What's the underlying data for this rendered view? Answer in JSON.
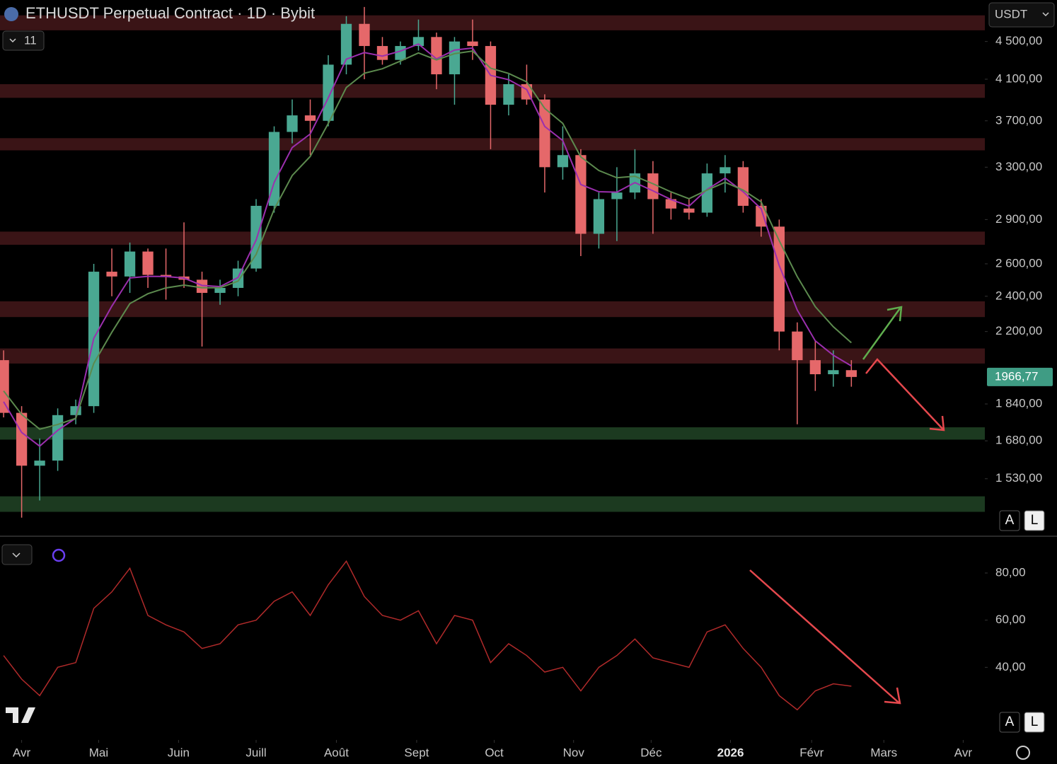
{
  "header": {
    "title": "ETHUSDT Perpetual Contract · 1D · Bybit",
    "indicator_count": "11",
    "currency": "USDT"
  },
  "chart_data": [
    {
      "type": "candlestick",
      "log_scale": true,
      "x": [
        -1,
        0,
        1,
        2,
        3,
        4,
        5,
        6,
        7,
        8,
        9,
        10,
        11,
        12,
        13,
        14,
        15,
        16,
        17,
        18,
        19,
        20,
        21,
        22,
        23,
        24,
        25,
        26,
        27,
        28,
        29,
        30,
        31,
        32,
        33,
        34,
        35,
        36,
        37,
        38,
        39,
        40,
        41,
        42,
        43,
        44,
        45,
        46
      ],
      "open": [
        2050,
        1800,
        1580,
        1600,
        1790,
        1830,
        2550,
        2520,
        2680,
        2530,
        2520,
        2500,
        2420,
        2450,
        2570,
        3000,
        3600,
        3750,
        3700,
        4250,
        4700,
        4450,
        4300,
        4450,
        4550,
        4150,
        4500,
        4450,
        3850,
        4050,
        3900,
        3300,
        3400,
        2800,
        3050,
        3100,
        3250,
        3050,
        2980,
        2950,
        3250,
        3300,
        3000,
        2850,
        2200,
        2050,
        1980,
        2000
      ],
      "high": [
        2100,
        1830,
        1690,
        1820,
        1860,
        2600,
        2700,
        2740,
        2700,
        2700,
        2880,
        2550,
        2500,
        2620,
        3050,
        3650,
        3900,
        3900,
        4350,
        4790,
        4900,
        4550,
        4500,
        4750,
        4600,
        4550,
        4750,
        4500,
        4150,
        4250,
        3950,
        3650,
        3450,
        3100,
        3300,
        3450,
        3350,
        3100,
        3050,
        3330,
        3400,
        3350,
        3050,
        2900,
        2250,
        2150,
        2100,
        2050
      ],
      "low": [
        1780,
        1390,
        1450,
        1560,
        1750,
        1800,
        2400,
        2420,
        2450,
        2380,
        2450,
        2120,
        2350,
        2400,
        2550,
        2950,
        3500,
        3400,
        3650,
        4150,
        4100,
        4250,
        4250,
        4400,
        4000,
        3850,
        4300,
        3450,
        3750,
        3850,
        3100,
        3200,
        2650,
        2700,
        2750,
        3050,
        2800,
        2900,
        2900,
        2920,
        3100,
        2950,
        2780,
        2100,
        1750,
        1900,
        1920,
        1920
      ],
      "close": [
        1800,
        1580,
        1600,
        1790,
        1830,
        2550,
        2520,
        2680,
        2530,
        2520,
        2500,
        2420,
        2450,
        2570,
        3000,
        3600,
        3750,
        3700,
        4250,
        4700,
        4450,
        4300,
        4450,
        4550,
        4150,
        4500,
        4450,
        3850,
        4050,
        3900,
        3300,
        3400,
        2800,
        3050,
        3100,
        3250,
        3050,
        2980,
        2950,
        3250,
        3300,
        3000,
        2850,
        2200,
        2050,
        1980,
        2000,
        1966.77
      ],
      "last_label": "1966,77",
      "up_color": "#4aa892",
      "down_color": "#e5686a",
      "overlays": [
        {
          "color": "#9b2fae",
          "values": [
            1850,
            1715,
            1658,
            1724,
            1777,
            2164,
            2342,
            2511,
            2521,
            2520,
            2510,
            2465,
            2458,
            2514,
            2757,
            3179,
            3464,
            3582,
            3916,
            4308,
            4379,
            4340,
            4395,
            4472,
            4311,
            4406,
            4428,
            4139,
            4095,
            3997,
            3649,
            3524,
            3162,
            3106,
            3103,
            3177,
            3113,
            3047,
            2998,
            3124,
            3212,
            3106,
            2978,
            2589,
            2320,
            2150,
            2075,
            2021
          ]
        },
        {
          "color": "#5c8a4e",
          "values": [
            1900,
            1793,
            1729,
            1749,
            1776,
            2034,
            2196,
            2357,
            2415,
            2450,
            2467,
            2451,
            2451,
            2491,
            2661,
            2974,
            3233,
            3389,
            3676,
            4017,
            4161,
            4207,
            4288,
            4375,
            4300,
            4367,
            4395,
            4213,
            4159,
            4073,
            3815,
            3677,
            3385,
            3273,
            3215,
            3227,
            3168,
            3105,
            3053,
            3119,
            3179,
            3119,
            3029,
            2753,
            2519,
            2339,
            2226,
            2140
          ]
        }
      ],
      "zones": [
        {
          "range": [
            4626,
            4800
          ],
          "color": "#3a1416"
        },
        {
          "range": [
            3916,
            4050
          ],
          "color": "#3a1416"
        },
        {
          "range": [
            3440,
            3545
          ],
          "color": "#3a1416"
        },
        {
          "range": [
            2725,
            2815
          ],
          "color": "#3a1416"
        },
        {
          "range": [
            2280,
            2370
          ],
          "color": "#3a1416"
        },
        {
          "range": [
            2033,
            2110
          ],
          "color": "#3a1416"
        },
        {
          "range": [
            1685,
            1737
          ],
          "color": "#1c3a20"
        },
        {
          "range": [
            1410,
            1465
          ],
          "color": "#1c3a20"
        }
      ],
      "xlim": [
        -1.2,
        53.4
      ],
      "xticks": [
        {
          "value": 0,
          "label": "Avr"
        },
        {
          "value": 4.27,
          "label": "Mai"
        },
        {
          "value": 8.7,
          "label": "Juin"
        },
        {
          "value": 13.0,
          "label": "Juill"
        },
        {
          "value": 17.45,
          "label": "Août"
        },
        {
          "value": 21.9,
          "label": "Sept"
        },
        {
          "value": 26.2,
          "label": "Oct"
        },
        {
          "value": 30.6,
          "label": "Nov"
        },
        {
          "value": 34.9,
          "label": "Déc"
        },
        {
          "value": 39.3,
          "label": "2026"
        },
        {
          "value": 43.8,
          "label": "Févr"
        },
        {
          "value": 47.8,
          "label": "Mars"
        },
        {
          "value": 52.2,
          "label": "Avr"
        }
      ],
      "ylim": [
        1330,
        4985
      ],
      "yticks": [
        {
          "value": 4500,
          "label": "4 500,00"
        },
        {
          "value": 4100,
          "label": "4 100,00"
        },
        {
          "value": 3700,
          "label": "3 700,00"
        },
        {
          "value": 3300,
          "label": "3 300,00"
        },
        {
          "value": 2900,
          "label": "2 900,00"
        },
        {
          "value": 2600,
          "label": "2 600,00"
        },
        {
          "value": 2400,
          "label": "2 400,00"
        },
        {
          "value": 2200,
          "label": "2 200,00"
        },
        {
          "value": 1840,
          "label": "1 840,00"
        },
        {
          "value": 1680,
          "label": "1 680,00"
        },
        {
          "value": 1530,
          "label": "1 530,00"
        }
      ],
      "buttons": [
        "A",
        "L"
      ]
    },
    {
      "type": "line",
      "color": "#b02a2a",
      "x": [
        -1,
        0,
        1,
        2,
        3,
        4,
        5,
        6,
        7,
        8,
        9,
        10,
        11,
        12,
        13,
        14,
        15,
        16,
        17,
        18,
        19,
        20,
        21,
        22,
        23,
        24,
        25,
        26,
        27,
        28,
        29,
        30,
        31,
        32,
        33,
        34,
        35,
        36,
        37,
        38,
        39,
        40,
        41,
        42,
        43,
        44,
        45,
        46
      ],
      "values": [
        45,
        35,
        28,
        40,
        42,
        65,
        72,
        82,
        62,
        58,
        55,
        48,
        50,
        58,
        60,
        68,
        72,
        62,
        75,
        85,
        70,
        62,
        60,
        64,
        50,
        62,
        60,
        42,
        50,
        45,
        38,
        40,
        30,
        40,
        45,
        52,
        44,
        42,
        40,
        55,
        58,
        48,
        40,
        28,
        22,
        30,
        33,
        32
      ],
      "xlim": [
        -1.2,
        53.4
      ],
      "ylim": [
        11,
        95
      ],
      "yticks": [
        {
          "value": 80,
          "label": "80,00"
        },
        {
          "value": 60,
          "label": "60,00"
        },
        {
          "value": 40,
          "label": "40,00"
        }
      ],
      "buttons": [
        "A",
        "L"
      ]
    }
  ]
}
